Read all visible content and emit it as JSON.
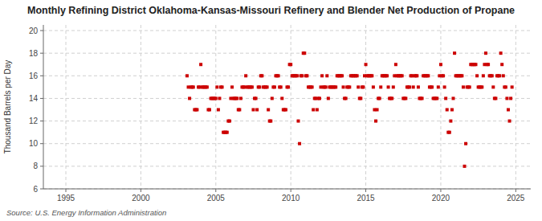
{
  "chart_data": {
    "type": "scatter",
    "title": "Monthly Refining District Oklahoma-Kansas-Missouri Refinery and Blender Net Production of Propane",
    "ylabel": "Thousand Barrels per Day",
    "source": "Source: U.S. Energy Information Administration",
    "color": "#cc0000",
    "marker": "square",
    "grid": true,
    "xlim": [
      1993.5,
      2026
    ],
    "xticks": [
      1995,
      2000,
      2005,
      2010,
      2015,
      2020,
      2025
    ],
    "ylim": [
      6,
      20.5
    ],
    "yticks": [
      6,
      8,
      10,
      12,
      14,
      16,
      18,
      20
    ],
    "x": [
      2003.083,
      2003.167,
      2003.25,
      2003.333,
      2003.417,
      2003.5,
      2003.583,
      2003.667,
      2003.75,
      2003.833,
      2003.917,
      2004.0,
      2004.083,
      2004.167,
      2004.25,
      2004.333,
      2004.417,
      2004.5,
      2004.583,
      2004.667,
      2004.75,
      2004.833,
      2004.917,
      2005.0,
      2005.083,
      2005.167,
      2005.25,
      2005.333,
      2005.417,
      2005.5,
      2005.583,
      2005.667,
      2005.75,
      2005.833,
      2005.917,
      2006.0,
      2006.083,
      2006.167,
      2006.25,
      2006.333,
      2006.417,
      2006.5,
      2006.583,
      2006.667,
      2006.75,
      2006.833,
      2006.917,
      2007.0,
      2007.083,
      2007.167,
      2007.25,
      2007.333,
      2007.417,
      2007.5,
      2007.583,
      2007.667,
      2007.75,
      2007.833,
      2007.917,
      2008.0,
      2008.083,
      2008.167,
      2008.25,
      2008.333,
      2008.417,
      2008.5,
      2008.583,
      2008.667,
      2008.75,
      2008.833,
      2008.917,
      2009.0,
      2009.083,
      2009.167,
      2009.25,
      2009.333,
      2009.417,
      2009.5,
      2009.583,
      2009.667,
      2009.75,
      2009.833,
      2009.917,
      2010.0,
      2010.083,
      2010.167,
      2010.25,
      2010.333,
      2010.417,
      2010.5,
      2010.583,
      2010.667,
      2010.75,
      2010.833,
      2010.917,
      2011.0,
      2011.083,
      2011.167,
      2011.25,
      2011.333,
      2011.417,
      2011.5,
      2011.583,
      2011.667,
      2011.75,
      2011.833,
      2011.917,
      2012.0,
      2012.083,
      2012.167,
      2012.25,
      2012.333,
      2012.417,
      2012.5,
      2012.583,
      2012.667,
      2012.75,
      2012.833,
      2012.917,
      2013.0,
      2013.083,
      2013.167,
      2013.25,
      2013.333,
      2013.417,
      2013.5,
      2013.583,
      2013.667,
      2013.75,
      2013.833,
      2013.917,
      2014.0,
      2014.083,
      2014.167,
      2014.25,
      2014.333,
      2014.417,
      2014.5,
      2014.583,
      2014.667,
      2014.75,
      2014.833,
      2014.917,
      2015.0,
      2015.083,
      2015.167,
      2015.25,
      2015.333,
      2015.417,
      2015.5,
      2015.583,
      2015.667,
      2015.75,
      2015.833,
      2015.917,
      2016.0,
      2016.083,
      2016.167,
      2016.25,
      2016.333,
      2016.417,
      2016.5,
      2016.583,
      2016.667,
      2016.75,
      2016.833,
      2016.917,
      2017.0,
      2017.083,
      2017.167,
      2017.25,
      2017.333,
      2017.417,
      2017.5,
      2017.583,
      2017.667,
      2017.75,
      2017.833,
      2017.917,
      2018.0,
      2018.083,
      2018.167,
      2018.25,
      2018.333,
      2018.417,
      2018.5,
      2018.583,
      2018.667,
      2018.75,
      2018.833,
      2018.917,
      2019.0,
      2019.083,
      2019.167,
      2019.25,
      2019.333,
      2019.417,
      2019.5,
      2019.583,
      2019.667,
      2019.75,
      2019.833,
      2019.917,
      2020.0,
      2020.083,
      2020.167,
      2020.25,
      2020.333,
      2020.417,
      2020.5,
      2020.583,
      2020.667,
      2020.75,
      2020.833,
      2020.917,
      2021.0,
      2021.083,
      2021.167,
      2021.25,
      2021.333,
      2021.417,
      2021.5,
      2021.583,
      2021.667,
      2021.75,
      2021.833,
      2021.917,
      2022.0,
      2022.083,
      2022.167,
      2022.25,
      2022.333,
      2022.417,
      2022.5,
      2022.583,
      2022.667,
      2022.75,
      2022.833,
      2022.917,
      2023.0,
      2023.083,
      2023.167,
      2023.25,
      2023.333,
      2023.417,
      2023.5,
      2023.583,
      2023.667,
      2023.75,
      2023.833,
      2023.917,
      2024.0,
      2024.083,
      2024.167,
      2024.25,
      2024.333,
      2024.417,
      2024.5,
      2024.583,
      2024.667,
      2024.75
    ],
    "values": [
      16,
      15,
      14,
      15,
      15,
      15,
      13,
      13,
      13,
      15,
      15,
      17,
      15,
      15,
      15,
      15,
      15,
      13,
      13,
      14,
      14,
      14,
      14,
      14,
      15,
      13,
      14,
      15,
      15,
      11,
      11,
      11,
      11,
      12,
      12,
      14,
      15,
      14,
      14,
      14,
      14,
      13,
      13,
      14,
      15,
      15,
      15,
      16,
      15,
      15,
      15,
      15,
      15,
      13,
      14,
      14,
      13,
      15,
      15,
      16,
      16,
      15,
      15,
      15,
      15,
      13,
      12,
      12,
      14,
      15,
      15,
      16,
      16,
      16,
      15,
      15,
      14,
      13,
      13,
      13,
      15,
      15,
      17,
      17,
      16,
      16,
      16,
      16,
      16,
      12,
      10,
      16,
      16,
      18,
      18,
      16,
      16,
      15,
      15,
      15,
      15,
      13,
      14,
      14,
      13,
      14,
      14,
      15,
      16,
      15,
      15,
      15,
      16,
      14,
      15,
      15,
      15,
      15,
      15,
      15,
      16,
      16,
      16,
      16,
      16,
      15,
      14,
      14,
      15,
      15,
      15,
      16,
      16,
      16,
      16,
      16,
      16,
      15,
      14,
      14,
      15,
      15,
      16,
      17,
      16,
      16,
      16,
      16,
      16,
      15,
      13,
      12,
      13,
      14,
      14,
      15,
      16,
      16,
      16,
      16,
      16,
      15,
      14,
      14,
      14,
      15,
      16,
      17,
      16,
      16,
      16,
      16,
      16,
      14,
      14,
      14,
      15,
      15,
      15,
      16,
      16,
      15,
      16,
      16,
      16,
      15,
      14,
      14,
      14,
      16,
      16,
      16,
      16,
      16,
      15,
      15,
      15,
      14,
      14,
      14,
      14,
      15,
      16,
      17,
      16,
      16,
      15,
      14,
      13,
      11,
      11,
      12,
      13,
      14,
      18,
      16,
      16,
      16,
      16,
      16,
      16,
      15,
      8,
      10,
      15,
      15,
      15,
      17,
      17,
      17,
      17,
      17,
      16,
      15,
      15,
      15,
      15,
      16,
      17,
      18,
      17,
      17,
      16,
      16,
      16,
      15,
      14,
      14,
      16,
      16,
      16,
      18,
      17,
      16,
      15,
      15,
      14,
      13,
      12,
      14,
      15
    ]
  }
}
